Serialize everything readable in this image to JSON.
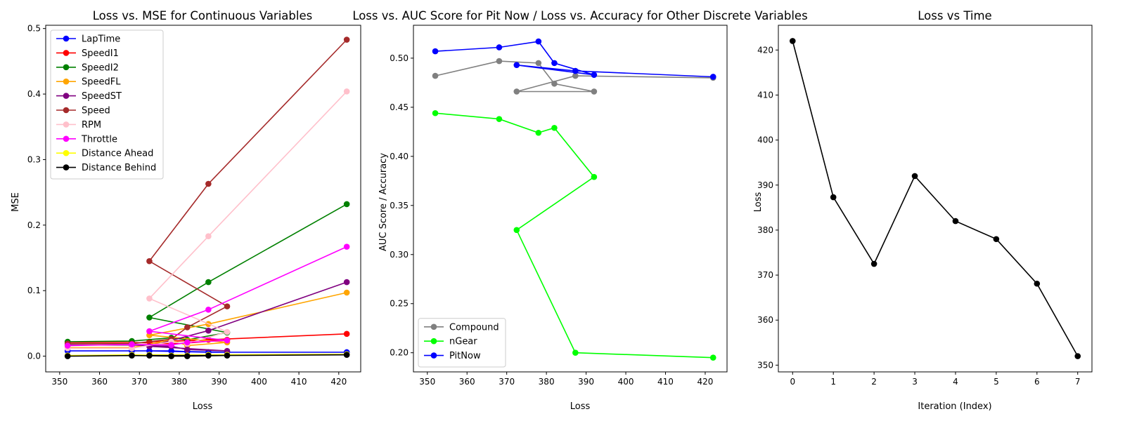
{
  "chart_data": [
    {
      "type": "line",
      "title": "Loss vs. MSE for Continuous Variables",
      "xlabel": "Loss",
      "ylabel": "MSE",
      "xlim": [
        346.5,
        425.5
      ],
      "ylim": [
        -0.024,
        0.505
      ],
      "xticks": [
        350,
        360,
        370,
        380,
        390,
        400,
        410,
        420
      ],
      "yticks": [
        0.0,
        0.1,
        0.2,
        0.3,
        0.4,
        0.5
      ],
      "ytick_labels": [
        "0.0",
        "0.1",
        "0.2",
        "0.3",
        "0.4",
        "0.5"
      ],
      "legend_position": "upper-left",
      "x": [
        422,
        387.3,
        372.5,
        392,
        382,
        378,
        368.1,
        352
      ],
      "series": [
        {
          "name": "LapTime",
          "color": "#0000ff",
          "values": [
            0.006,
            0.006,
            0.008,
            0.006,
            0.007,
            0.008,
            0.008,
            0.008
          ]
        },
        {
          "name": "SpeedI1",
          "color": "#ff0000",
          "values": [
            0.034,
            0.025,
            0.022,
            0.025,
            0.02,
            0.019,
            0.021,
            0.021
          ]
        },
        {
          "name": "SpeedI2",
          "color": "#008000",
          "values": [
            0.232,
            0.113,
            0.059,
            0.036,
            0.025,
            0.028,
            0.023,
            0.022
          ]
        },
        {
          "name": "SpeedFL",
          "color": "#ffa500",
          "values": [
            0.097,
            0.049,
            0.032,
            0.021,
            0.016,
            0.025,
            0.013,
            0.013
          ]
        },
        {
          "name": "SpeedST",
          "color": "#800080",
          "values": [
            0.113,
            0.039,
            0.015,
            0.008,
            0.01,
            0.015,
            0.017,
            0.017
          ]
        },
        {
          "name": "Speed",
          "color": "#a52a2a",
          "values": [
            0.483,
            0.263,
            0.145,
            0.076,
            0.044,
            0.026,
            0.019,
            0.019
          ]
        },
        {
          "name": "RPM",
          "color": "#ffc0cb",
          "values": [
            0.404,
            0.183,
            0.088,
            0.037,
            0.019,
            0.022,
            0.012,
            0.012
          ]
        },
        {
          "name": "Throttle",
          "color": "#ff00ff",
          "values": [
            0.167,
            0.071,
            0.038,
            0.024,
            0.021,
            0.017,
            0.018,
            0.016
          ]
        },
        {
          "name": "Distance Ahead",
          "color": "#ffff00",
          "values": [
            0.003,
            0.002,
            0.002,
            0.002,
            0.001,
            0.001,
            0.002,
            0.001
          ]
        },
        {
          "name": "Distance Behind",
          "color": "#000000",
          "values": [
            0.002,
            0.001,
            0.001,
            0.001,
            0.0,
            0.0,
            0.001,
            0.0
          ]
        }
      ]
    },
    {
      "type": "line",
      "title": "Loss vs. AUC Score for Pit Now / Loss vs. Accuracy for Other Discrete Variables",
      "xlabel": "Loss",
      "ylabel": "AUC Score / Accuracy",
      "xlim": [
        346.5,
        425.5
      ],
      "ylim": [
        0.1805,
        0.5335
      ],
      "xticks": [
        350,
        360,
        370,
        380,
        390,
        400,
        410,
        420
      ],
      "yticks": [
        0.2,
        0.25,
        0.3,
        0.35,
        0.4,
        0.45,
        0.5
      ],
      "ytick_labels": [
        "0.20",
        "0.25",
        "0.30",
        "0.35",
        "0.40",
        "0.45",
        "0.50"
      ],
      "legend_position": "lower-left",
      "x": [
        422,
        387.3,
        372.5,
        392,
        382,
        378,
        368.1,
        352
      ],
      "series": [
        {
          "name": "Compound",
          "color": "#808080",
          "values": [
            0.48,
            0.482,
            0.466,
            0.466,
            0.474,
            0.495,
            0.497,
            0.482
          ]
        },
        {
          "name": "nGear",
          "color": "#00ff00",
          "values": [
            0.195,
            0.2,
            0.325,
            0.379,
            0.429,
            0.424,
            0.438,
            0.444
          ]
        },
        {
          "name": "PitNow",
          "color": "#0000ff",
          "values": [
            0.481,
            0.487,
            0.493,
            0.483,
            0.495,
            0.517,
            0.511,
            0.507
          ]
        }
      ]
    },
    {
      "type": "line",
      "title": "Loss vs Time",
      "xlabel": "Iteration (Index)",
      "ylabel": "Loss",
      "xlim": [
        -0.35,
        7.35
      ],
      "ylim": [
        348.5,
        425.5
      ],
      "xticks": [
        0,
        1,
        2,
        3,
        4,
        5,
        6,
        7
      ],
      "yticks": [
        350,
        360,
        370,
        380,
        390,
        400,
        410,
        420
      ],
      "x": [
        0,
        1,
        2,
        3,
        4,
        5,
        6,
        7
      ],
      "series": [
        {
          "color": "#000000",
          "values": [
            422,
            387.3,
            372.5,
            392,
            382,
            378,
            368.1,
            352
          ]
        }
      ]
    }
  ]
}
